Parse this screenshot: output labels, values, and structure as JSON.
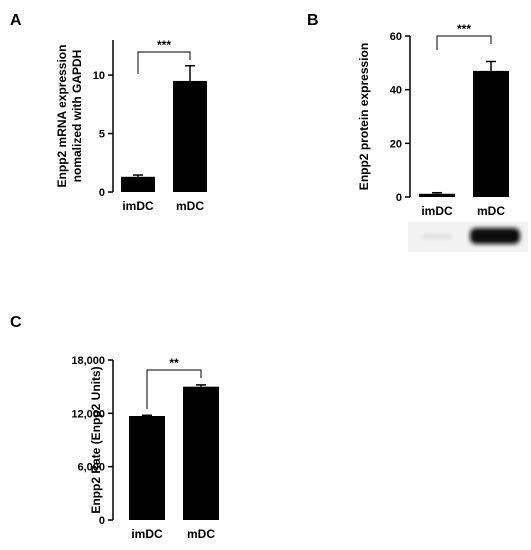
{
  "chart_data": [
    {
      "panel": "A",
      "type": "bar",
      "ylabel": "Enpp2 mRNA expression nomalized with GAPDH",
      "ylabel_lines": [
        "Enpp2 mRNA expression",
        "nomalized with GAPDH"
      ],
      "categories": [
        "imDC",
        "mDC"
      ],
      "values": [
        1.3,
        9.5
      ],
      "errors": [
        0.15,
        1.3
      ],
      "ylim": [
        0,
        13
      ],
      "yticks": [
        0,
        5,
        10
      ],
      "ytick_labels": [
        "0",
        "5",
        "10"
      ],
      "significance": "***",
      "bar_color": "#000000",
      "legend": "none",
      "grid": false
    },
    {
      "panel": "B",
      "type": "bar",
      "ylabel": "Enpp2 protein expression",
      "ylabel_lines": [
        "Enpp2 protein expression"
      ],
      "categories": [
        "imDC",
        "mDC"
      ],
      "values": [
        1.2,
        47
      ],
      "errors": [
        0.4,
        3.5
      ],
      "ylim": [
        0,
        60
      ],
      "yticks": [
        0,
        20,
        40,
        60
      ],
      "ytick_labels": [
        "0",
        "20",
        "40",
        "60"
      ],
      "significance": "***",
      "bar_color": "#000000",
      "legend": "none",
      "grid": false
    },
    {
      "panel": "C",
      "type": "bar",
      "ylabel": "Enpp2 Rate (Enpp2 Units)",
      "ylabel_lines": [
        "Enpp2 Rate (Enpp2 Units)"
      ],
      "categories": [
        "imDC",
        "mDC"
      ],
      "values": [
        11700,
        15000
      ],
      "errors": [
        80,
        200
      ],
      "ylim": [
        0,
        18000
      ],
      "yticks": [
        0,
        6000,
        12000,
        18000
      ],
      "ytick_labels": [
        "0",
        "6,000",
        "12,000",
        "18,000"
      ],
      "significance": "**",
      "bar_color": "#000000",
      "legend": "none",
      "grid": false
    }
  ],
  "western_blot": {
    "panel": "B",
    "bands": [
      {
        "lane": "imDC",
        "intensity": 0.08
      },
      {
        "lane": "mDC",
        "intensity": 1.0
      }
    ]
  }
}
